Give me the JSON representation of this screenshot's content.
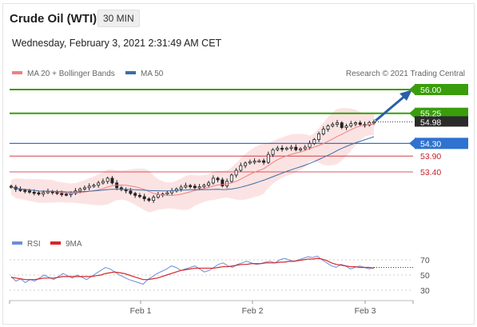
{
  "header": {
    "title": "Crude Oil (WTI)",
    "timeframe": "30 MIN",
    "datetime": "Wednesday, February 3, 2021 2:31:49 AM CET"
  },
  "legend_top": {
    "ma20_label": "MA 20 + Bollinger Bands",
    "ma50_label": "MA 50",
    "credit": "Research © 2021 Trading Central",
    "ma20_color": "#f08080",
    "ma50_color": "#3a6ea5"
  },
  "legend_bottom": {
    "rsi_label": "RSI",
    "ma9_label": "9MA",
    "rsi_color": "#6a8fd8",
    "ma9_color": "#d62728"
  },
  "chart_data": [
    {
      "type": "candlestick",
      "title": "Crude Oil (WTI)",
      "x_ticks": [
        "Feb 1",
        "Feb 2",
        "Feb 3"
      ],
      "price_range": [
        52.2,
        56.3
      ],
      "last_price": 54.98,
      "close_series": [
        52.92,
        52.85,
        52.82,
        52.8,
        52.76,
        52.74,
        52.7,
        52.75,
        52.78,
        52.76,
        52.72,
        52.7,
        52.68,
        52.72,
        52.8,
        52.86,
        52.9,
        52.95,
        52.98,
        53.05,
        53.1,
        53.2,
        53.05,
        52.9,
        52.84,
        52.8,
        52.72,
        52.66,
        52.62,
        52.55,
        52.5,
        52.6,
        52.68,
        52.7,
        52.74,
        52.8,
        52.86,
        52.92,
        52.97,
        52.95,
        52.9,
        52.93,
        52.98,
        53.05,
        53.2,
        53.15,
        52.96,
        53.1,
        53.3,
        53.45,
        53.6,
        53.68,
        53.72,
        53.74,
        53.75,
        53.7,
        53.95,
        54.1,
        54.15,
        54.12,
        54.15,
        54.18,
        54.1,
        54.13,
        54.18,
        54.3,
        54.42,
        54.6,
        54.75,
        54.85,
        54.9,
        54.95,
        54.8,
        54.85,
        54.92,
        54.95,
        54.9,
        54.88,
        54.96,
        54.98
      ],
      "levels": [
        {
          "value": "56.00",
          "type": "target",
          "color": "#3a9d0c"
        },
        {
          "value": "55.25",
          "type": "resistance",
          "color": "#3a9d0c"
        },
        {
          "value": "54.98",
          "type": "last",
          "color": "#2b2b2b"
        },
        {
          "value": "54.30",
          "type": "pivot",
          "color": "#2f72d0"
        },
        {
          "value": "53.90",
          "type": "support",
          "color": "#c9232b"
        },
        {
          "value": "53.40",
          "type": "support",
          "color": "#c9232b"
        }
      ]
    },
    {
      "type": "line",
      "series": [
        {
          "name": "RSI"
        },
        {
          "name": "9MA"
        }
      ],
      "y_ticks": [
        "70",
        "50",
        "30"
      ],
      "y_range": [
        20,
        80
      ],
      "rsi": [
        48,
        42,
        45,
        40,
        44,
        42,
        46,
        50,
        47,
        44,
        48,
        52,
        49,
        46,
        50,
        47,
        44,
        48,
        52,
        56,
        60,
        58,
        54,
        50,
        47,
        44,
        42,
        40,
        38,
        44,
        48,
        52,
        55,
        58,
        62,
        60,
        56,
        58,
        60,
        62,
        58,
        54,
        56,
        60,
        64,
        66,
        62,
        60,
        64,
        66,
        68,
        66,
        64,
        65,
        67,
        68,
        66,
        70,
        72,
        70,
        68,
        70,
        72,
        74,
        73,
        75,
        70,
        66,
        62,
        60,
        64,
        62,
        58,
        60,
        62,
        60,
        58,
        60
      ],
      "ma9": [
        47,
        46,
        45,
        44,
        44,
        44,
        45,
        46,
        46,
        46,
        47,
        48,
        48,
        48,
        48,
        48,
        48,
        48,
        49,
        50,
        52,
        53,
        54,
        53,
        52,
        50,
        48,
        46,
        44,
        44,
        45,
        46,
        48,
        50,
        52,
        54,
        56,
        57,
        58,
        59,
        59,
        59,
        59,
        59,
        60,
        61,
        61,
        62,
        63,
        64,
        64,
        65,
        65,
        65,
        66,
        66,
        66,
        67,
        67,
        68,
        68,
        69,
        70,
        71,
        71,
        72,
        71,
        69,
        66,
        64,
        63,
        62,
        61,
        61,
        60,
        60,
        60,
        59
      ]
    }
  ]
}
